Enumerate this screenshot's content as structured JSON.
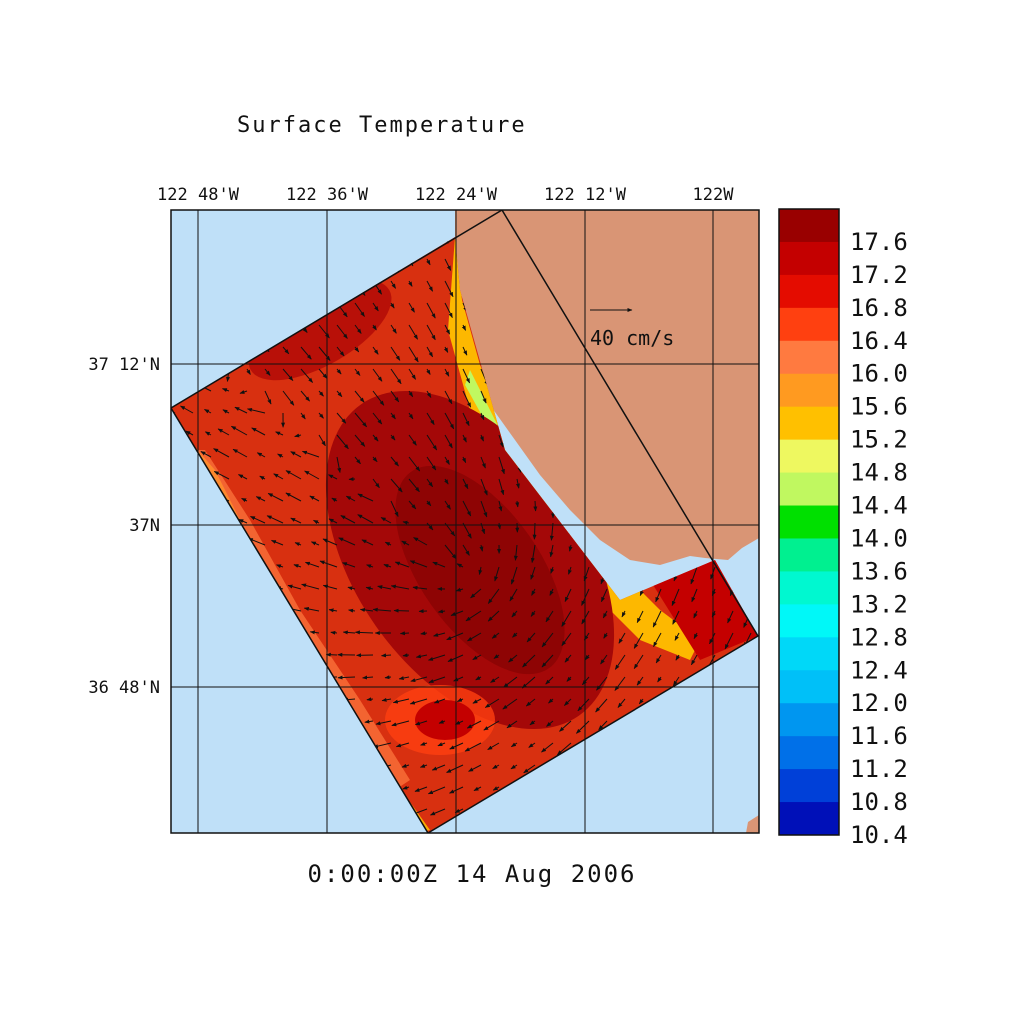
{
  "title": "Surface Temperature",
  "timestamp": "0:00:00Z  14 Aug 2006",
  "axes": {
    "lon_labels": [
      "122 48'W",
      "122 36'W",
      "122 24'W",
      "122 12'W",
      "122W"
    ],
    "lat_labels": [
      "37 12'N",
      "37N",
      "36 48'N"
    ]
  },
  "vector_scale": {
    "label": "40 cm/s"
  },
  "colorbar": {
    "labels": [
      "17.6",
      "17.2",
      "16.8",
      "16.4",
      "16.0",
      "15.6",
      "15.2",
      "14.8",
      "14.4",
      "14.0",
      "13.6",
      "13.2",
      "12.8",
      "12.4",
      "12.0",
      "11.6",
      "11.2",
      "10.8",
      "10.4"
    ],
    "colors": [
      "#990000",
      "#c40000",
      "#e40c00",
      "#ff4010",
      "#ff7a40",
      "#ff9a20",
      "#ffc000",
      "#eef860",
      "#c0f860",
      "#00e000",
      "#00f090",
      "#00f8d0",
      "#00f8f8",
      "#00d8f8",
      "#00c0f8",
      "#0096f0",
      "#0070e8",
      "#0040d8",
      "#0010b8"
    ]
  },
  "colors": {
    "ocean": "#bfe0f8",
    "land": "#d99575",
    "domain_warm": "#d83010",
    "domain_hot": "#a40808",
    "coastal_cool": "#ffc000"
  }
}
